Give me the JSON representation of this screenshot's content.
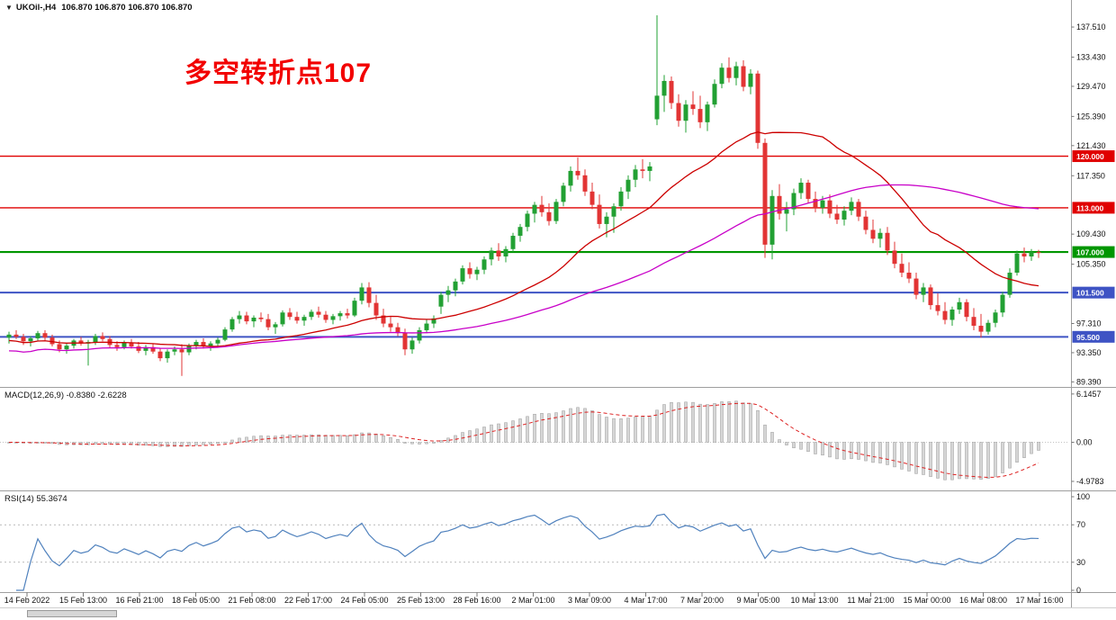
{
  "annotation": {
    "text": "多空转折点107",
    "color": "#f20000"
  },
  "chart_data": [
    {
      "type": "candlestick",
      "title": "UKOil-,H4",
      "ohlc_display": "106.870 106.870 106.870 106.870",
      "colors": {
        "bull": "#22a033",
        "bear": "#e23434",
        "ma_fast": "#cc0000",
        "ma_slow": "#c800c8"
      },
      "ma_overlays": [
        {
          "period": 24,
          "color": "#cc0000"
        },
        {
          "period": 60,
          "color": "#c800c8"
        }
      ],
      "hlines": [
        {
          "price": 120.0,
          "label": "120.000",
          "color": "#e00000",
          "width": 1.4
        },
        {
          "price": 113.0,
          "label": "113.000",
          "color": "#e00000",
          "width": 1.4
        },
        {
          "price": 107.0,
          "label": "107.000",
          "color": "#009600",
          "width": 2.2
        },
        {
          "price": 101.5,
          "label": "101.500",
          "color": "#3e53c4",
          "width": 2.0
        },
        {
          "price": 95.5,
          "label": "95.500",
          "color": "#3e53c4",
          "width": 2.0
        }
      ],
      "y_ticks": [
        "137.510",
        "133.430",
        "129.470",
        "125.390",
        "121.430",
        "117.350",
        "109.430",
        "105.350",
        "97.310",
        "93.350",
        "89.390"
      ],
      "x_labels": [
        "14 Feb 2022",
        "15 Feb 13:00",
        "16 Feb 21:00",
        "18 Feb 05:00",
        "21 Feb 08:00",
        "22 Feb 17:00",
        "24 Feb 05:00",
        "25 Feb 13:00",
        "28 Feb 16:00",
        "2 Mar 01:00",
        "3 Mar 09:00",
        "4 Mar 17:00",
        "7 Mar 20:00",
        "9 Mar 05:00",
        "10 Mar 13:00",
        "11 Mar 21:00",
        "15 Mar 00:00",
        "16 Mar 08:00",
        "17 Mar 16:00"
      ],
      "candles": [
        [
          95.4,
          96.2,
          94.6,
          95.8
        ],
        [
          95.8,
          96.4,
          95.2,
          95.5
        ],
        [
          95.5,
          95.9,
          94.4,
          94.9
        ],
        [
          94.9,
          95.6,
          94.2,
          95.3
        ],
        [
          95.3,
          96.3,
          95.0,
          96.0
        ],
        [
          96.0,
          96.4,
          95.0,
          95.4
        ],
        [
          95.4,
          95.8,
          94.2,
          94.5
        ],
        [
          94.5,
          95.0,
          93.4,
          93.8
        ],
        [
          93.8,
          94.6,
          93.2,
          94.3
        ],
        [
          94.3,
          95.2,
          93.9,
          95.0
        ],
        [
          95.0,
          95.5,
          94.3,
          94.6
        ],
        [
          94.6,
          95.1,
          91.6,
          94.8
        ],
        [
          94.8,
          95.9,
          94.4,
          95.6
        ],
        [
          95.6,
          96.1,
          94.9,
          95.2
        ],
        [
          95.2,
          95.6,
          94.0,
          94.4
        ],
        [
          94.4,
          94.9,
          93.6,
          94.1
        ],
        [
          94.1,
          95.0,
          93.8,
          94.7
        ],
        [
          94.7,
          95.2,
          93.9,
          94.2
        ],
        [
          94.2,
          94.8,
          93.3,
          93.6
        ],
        [
          93.6,
          94.4,
          93.0,
          94.1
        ],
        [
          94.1,
          94.6,
          93.2,
          93.5
        ],
        [
          93.5,
          94.0,
          92.2,
          92.6
        ],
        [
          92.6,
          93.8,
          92.0,
          93.5
        ],
        [
          93.5,
          94.2,
          93.0,
          93.8
        ],
        [
          93.8,
          94.5,
          90.2,
          93.4
        ],
        [
          93.4,
          94.6,
          93.0,
          94.3
        ],
        [
          94.3,
          95.1,
          93.8,
          94.8
        ],
        [
          94.8,
          95.3,
          93.9,
          94.2
        ],
        [
          94.2,
          94.9,
          93.6,
          94.6
        ],
        [
          94.6,
          95.4,
          94.1,
          95.1
        ],
        [
          95.1,
          96.8,
          94.9,
          96.5
        ],
        [
          96.5,
          98.2,
          96.2,
          97.9
        ],
        [
          97.9,
          99.0,
          97.3,
          98.4
        ],
        [
          98.4,
          98.9,
          97.2,
          97.6
        ],
        [
          97.6,
          98.4,
          96.8,
          98.1
        ],
        [
          98.1,
          98.8,
          97.5,
          97.9
        ],
        [
          97.9,
          98.6,
          96.4,
          96.8
        ],
        [
          96.8,
          97.5,
          95.9,
          97.2
        ],
        [
          97.2,
          99.1,
          96.9,
          98.8
        ],
        [
          98.8,
          99.4,
          97.8,
          98.2
        ],
        [
          98.2,
          98.9,
          97.3,
          97.7
        ],
        [
          97.7,
          98.5,
          97.0,
          98.2
        ],
        [
          98.2,
          99.2,
          97.8,
          98.9
        ],
        [
          98.9,
          99.6,
          98.1,
          98.5
        ],
        [
          98.5,
          99.0,
          97.4,
          97.8
        ],
        [
          97.8,
          98.6,
          97.2,
          98.3
        ],
        [
          98.3,
          99.0,
          97.7,
          98.7
        ],
        [
          98.7,
          99.3,
          98.0,
          98.4
        ],
        [
          98.4,
          100.8,
          98.2,
          100.4
        ],
        [
          100.4,
          102.8,
          99.9,
          102.2
        ],
        [
          102.2,
          102.9,
          99.5,
          100.1
        ],
        [
          100.1,
          101.2,
          97.8,
          98.4
        ],
        [
          98.4,
          99.3,
          96.8,
          97.3
        ],
        [
          97.3,
          98.2,
          96.2,
          96.8
        ],
        [
          96.8,
          97.4,
          95.6,
          96.0
        ],
        [
          96.0,
          96.6,
          93.0,
          93.8
        ],
        [
          93.8,
          95.4,
          93.2,
          95.0
        ],
        [
          95.0,
          96.8,
          94.6,
          96.4
        ],
        [
          96.4,
          97.8,
          96.0,
          97.3
        ],
        [
          97.3,
          98.4,
          96.7,
          98.0
        ],
        [
          99.6,
          101.6,
          98.6,
          101.2
        ],
        [
          101.2,
          102.4,
          100.2,
          101.8
        ],
        [
          101.8,
          103.4,
          101.0,
          103.0
        ],
        [
          103.0,
          105.2,
          102.6,
          104.8
        ],
        [
          104.8,
          105.6,
          103.4,
          104.0
        ],
        [
          104.0,
          105.0,
          103.2,
          104.6
        ],
        [
          104.6,
          106.4,
          104.0,
          106.0
        ],
        [
          106.0,
          107.6,
          105.2,
          107.2
        ],
        [
          107.2,
          108.2,
          105.8,
          106.4
        ],
        [
          106.4,
          107.8,
          105.6,
          107.4
        ],
        [
          107.4,
          109.6,
          107.0,
          109.2
        ],
        [
          109.2,
          110.8,
          108.4,
          110.4
        ],
        [
          110.4,
          112.6,
          109.8,
          112.2
        ],
        [
          112.2,
          113.8,
          111.0,
          113.4
        ],
        [
          113.4,
          114.6,
          111.8,
          112.4
        ],
        [
          112.4,
          113.6,
          110.6,
          111.2
        ],
        [
          111.2,
          114.2,
          110.8,
          113.8
        ],
        [
          113.8,
          116.4,
          113.2,
          116.0
        ],
        [
          116.0,
          118.6,
          115.2,
          118.0
        ],
        [
          118.0,
          119.8,
          116.8,
          117.4
        ],
        [
          117.4,
          118.2,
          114.6,
          115.2
        ],
        [
          115.2,
          116.4,
          112.8,
          113.4
        ],
        [
          113.4,
          114.8,
          110.2,
          110.8
        ],
        [
          110.8,
          112.4,
          109.0,
          111.8
        ],
        [
          111.8,
          113.6,
          109.6,
          113.2
        ],
        [
          113.2,
          115.8,
          112.6,
          115.2
        ],
        [
          115.2,
          117.4,
          114.2,
          116.8
        ],
        [
          116.8,
          118.8,
          115.8,
          118.2
        ],
        [
          118.2,
          119.6,
          117.0,
          118.0
        ],
        [
          118.0,
          119.2,
          116.6,
          118.6
        ],
        [
          125.0,
          139.1,
          124.2,
          128.2
        ],
        [
          128.2,
          131.0,
          126.0,
          130.2
        ],
        [
          130.2,
          130.8,
          126.4,
          127.2
        ],
        [
          127.2,
          128.4,
          124.0,
          124.8
        ],
        [
          124.8,
          127.6,
          123.2,
          127.0
        ],
        [
          127.0,
          128.8,
          125.6,
          126.4
        ],
        [
          126.4,
          128.2,
          123.8,
          124.6
        ],
        [
          124.6,
          127.4,
          123.4,
          127.0
        ],
        [
          127.0,
          130.4,
          126.6,
          129.8
        ],
        [
          129.8,
          132.6,
          129.2,
          132.0
        ],
        [
          132.0,
          133.4,
          130.0,
          130.6
        ],
        [
          130.6,
          132.8,
          129.6,
          132.2
        ],
        [
          132.2,
          133.0,
          128.8,
          129.4
        ],
        [
          129.4,
          131.8,
          128.4,
          131.2
        ],
        [
          131.2,
          131.6,
          121.0,
          121.8
        ],
        [
          121.8,
          122.4,
          106.2,
          108.0
        ],
        [
          108.0,
          115.4,
          106.0,
          114.6
        ],
        [
          114.6,
          116.2,
          111.4,
          112.2
        ],
        [
          112.2,
          113.8,
          109.8,
          112.8
        ],
        [
          112.8,
          115.6,
          112.0,
          115.0
        ],
        [
          115.0,
          117.0,
          114.2,
          116.4
        ],
        [
          116.4,
          116.8,
          113.6,
          114.2
        ],
        [
          114.2,
          115.2,
          112.4,
          113.0
        ],
        [
          113.0,
          114.6,
          112.2,
          114.0
        ],
        [
          114.0,
          114.8,
          111.6,
          112.2
        ],
        [
          112.2,
          113.4,
          110.8,
          111.4
        ],
        [
          111.4,
          113.2,
          110.6,
          112.6
        ],
        [
          112.6,
          114.4,
          112.0,
          113.8
        ],
        [
          113.8,
          114.2,
          111.2,
          111.8
        ],
        [
          111.8,
          112.6,
          109.4,
          110.0
        ],
        [
          110.0,
          111.4,
          108.2,
          108.8
        ],
        [
          108.8,
          110.2,
          107.6,
          109.6
        ],
        [
          109.6,
          110.4,
          106.6,
          107.2
        ],
        [
          107.2,
          108.4,
          104.8,
          105.4
        ],
        [
          105.4,
          106.8,
          103.6,
          104.2
        ],
        [
          104.2,
          105.6,
          102.8,
          103.4
        ],
        [
          103.4,
          104.2,
          100.6,
          101.2
        ],
        [
          101.2,
          102.8,
          100.2,
          102.2
        ],
        [
          102.2,
          102.6,
          99.2,
          99.8
        ],
        [
          99.8,
          101.4,
          98.4,
          99.0
        ],
        [
          99.0,
          100.2,
          97.2,
          97.8
        ],
        [
          97.8,
          99.6,
          97.0,
          99.2
        ],
        [
          99.2,
          100.8,
          98.6,
          100.2
        ],
        [
          100.2,
          100.6,
          97.6,
          98.2
        ],
        [
          98.2,
          99.4,
          96.4,
          97.0
        ],
        [
          97.0,
          98.6,
          95.4,
          96.2
        ],
        [
          96.2,
          97.8,
          95.8,
          97.4
        ],
        [
          97.4,
          99.2,
          96.8,
          98.8
        ],
        [
          98.8,
          101.6,
          98.2,
          101.2
        ],
        [
          101.2,
          104.8,
          100.8,
          104.2
        ],
        [
          104.2,
          107.2,
          103.8,
          106.8
        ],
        [
          106.8,
          107.6,
          105.6,
          106.4
        ],
        [
          106.4,
          107.4,
          105.8,
          107.0
        ],
        [
          107.0,
          107.3,
          106.2,
          106.9
        ]
      ]
    },
    {
      "type": "bar",
      "name": "MACD",
      "label": "MACD(12,26,9) -0.8380 -2.6228",
      "params": "12,26,9",
      "macd_value": -0.838,
      "signal_value": -2.6228,
      "bar_color": "#d6d6d6",
      "bar_edge_color": "#9a9a9a",
      "signal_color": "#dd2222",
      "y_ticks": [
        "6.1457",
        "0.00",
        "-4.9783"
      ]
    },
    {
      "type": "line",
      "name": "RSI",
      "label": "RSI(14) 55.3674",
      "period": 14,
      "value": 55.3674,
      "line_color": "#4f81bd",
      "levels": [
        70,
        30
      ],
      "y_ticks": [
        "100",
        "70",
        "30",
        "0"
      ]
    }
  ]
}
